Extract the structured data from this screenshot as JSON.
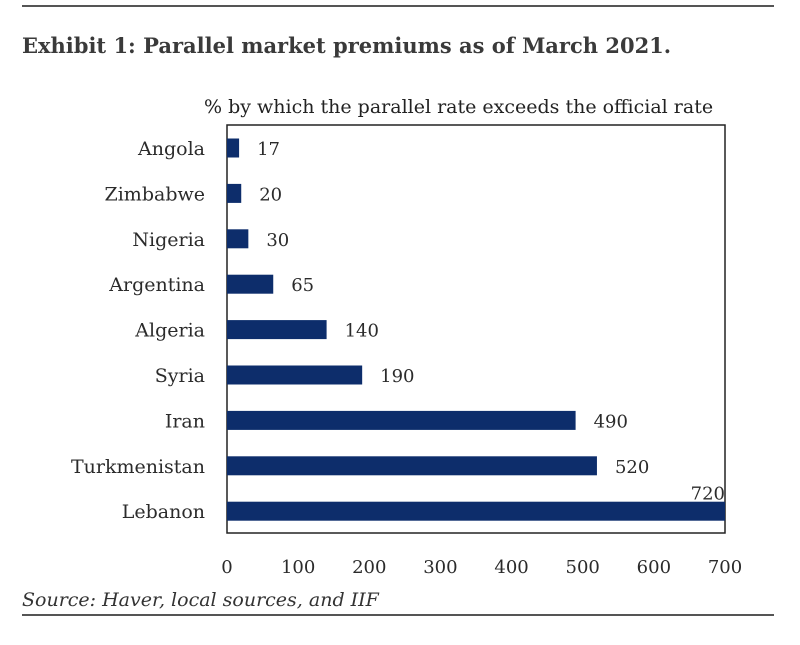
{
  "exhibit": {
    "title": "Exhibit 1: Parallel market premiums as of March 2021.",
    "source": "Source: Haver, local sources, and IIF"
  },
  "chart_data": {
    "type": "bar",
    "orientation": "horizontal",
    "title": "% by which the parallel rate exceeds the official rate",
    "categories": [
      "Angola",
      "Zimbabwe",
      "Nigeria",
      "Argentina",
      "Algeria",
      "Syria",
      "Iran",
      "Turkmenistan",
      "Lebanon"
    ],
    "values": [
      17,
      20,
      30,
      65,
      140,
      190,
      490,
      520,
      720
    ],
    "value_labels": [
      "17",
      "20",
      "30",
      "65",
      "140",
      "190",
      "490",
      "520",
      "720"
    ],
    "xlim": [
      0,
      700
    ],
    "xticks": [
      0,
      100,
      200,
      300,
      400,
      500,
      600,
      700
    ],
    "xtick_labels": [
      "0",
      "100",
      "200",
      "300",
      "400",
      "500",
      "600",
      "700"
    ],
    "bar_color": "#0d2d6b",
    "grid": false,
    "legend": "none"
  }
}
